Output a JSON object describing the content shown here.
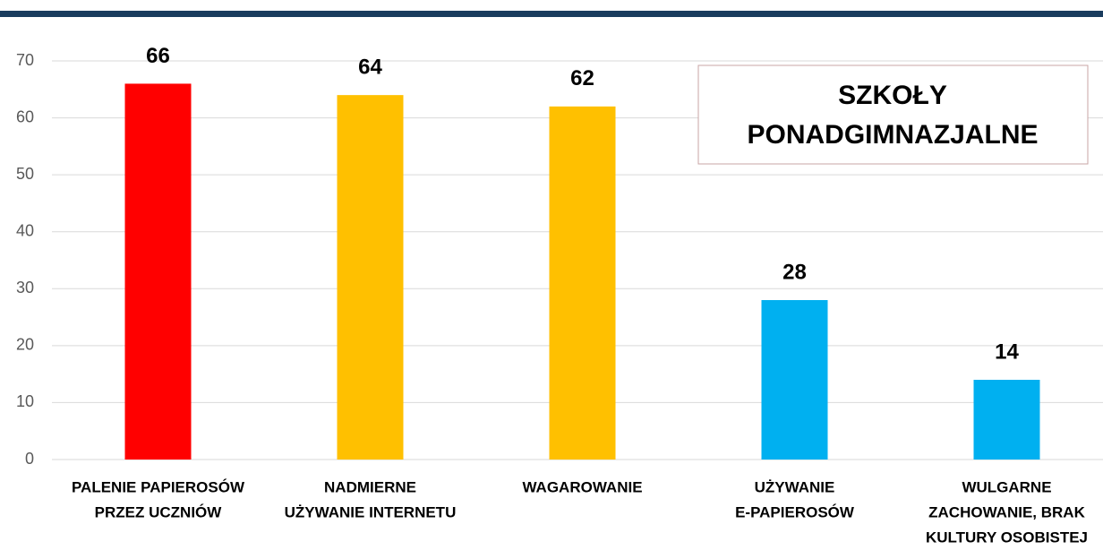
{
  "chart_data": {
    "type": "bar",
    "annotation": [
      "SZKOŁY",
      "PONADGIMNAZJALNE"
    ],
    "categories": [
      [
        "PALENIE PAPIEROSÓW",
        "PRZEZ UCZNIÓW"
      ],
      [
        "NADMIERNE",
        "UŻYWANIE INTERNETU"
      ],
      [
        "WAGAROWANIE"
      ],
      [
        "UŻYWANIE",
        "E-PAPIEROSÓW"
      ],
      [
        "WULGARNE",
        "ZACHOWANIE, BRAK",
        "KULTURY OSOBISTEJ"
      ]
    ],
    "values": [
      66,
      64,
      62,
      28,
      14
    ],
    "colors": [
      "#ff0000",
      "#ffc000",
      "#ffc000",
      "#00b0f0",
      "#00b0f0"
    ],
    "ylim": [
      0,
      70
    ],
    "yticks": [
      0,
      10,
      20,
      30,
      40,
      50,
      60,
      70
    ],
    "grid": true
  }
}
